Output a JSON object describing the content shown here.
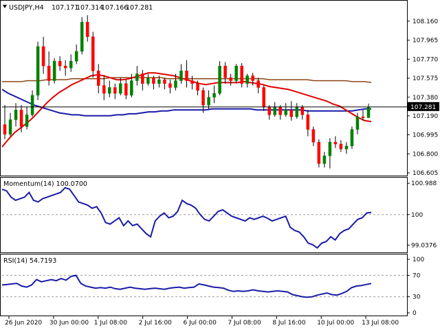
{
  "window": {
    "symbol_label": "USDJPY,H4",
    "ohlc": [
      "107.171",
      "107.314",
      "107.166",
      "107.281"
    ],
    "current_price_label": "107.281"
  },
  "chart_data": [
    {
      "type": "candlestick",
      "title": "USDJPY,H4",
      "ylim": [
        106.605,
        108.25
      ],
      "y_ticks": [
        "108.160",
        "107.965",
        "107.770",
        "107.575",
        "107.380",
        "107.190",
        "106.995",
        "106.800",
        "106.605"
      ],
      "x_ticks": [
        "26 Jun 2020",
        "30 Jun 00:00",
        "1 Jul 08:00",
        "2 Jul 16:00",
        "6 Jul 00:00",
        "7 Jul 08:00",
        "8 Jul 16:00",
        "10 Jul 00:00",
        "13 Jul 08:00"
      ],
      "current_price": 107.281,
      "colors": {
        "bull": "#008000",
        "bear": "#ff0000",
        "wick": "#000000",
        "ma_fast": "#e00000",
        "ma_mid": "#8b4513",
        "ma_slow": "#1a1aa8"
      },
      "candles": [
        [
          107.1,
          107.0,
          107.3,
          106.95
        ],
        [
          107.0,
          107.15,
          107.22,
          106.98
        ],
        [
          107.15,
          107.25,
          107.32,
          107.08
        ],
        [
          107.25,
          107.08,
          107.3,
          107.02
        ],
        [
          107.08,
          107.2,
          107.28,
          107.05
        ],
        [
          107.2,
          107.4,
          107.45,
          107.18
        ],
        [
          107.4,
          107.9,
          107.95,
          107.35
        ],
        [
          107.9,
          107.7,
          108.0,
          107.62
        ],
        [
          107.7,
          107.55,
          107.85,
          107.5
        ],
        [
          107.55,
          107.75,
          107.78,
          107.52
        ],
        [
          107.75,
          107.7,
          107.8,
          107.65
        ],
        [
          107.7,
          107.68,
          107.76,
          107.6
        ],
        [
          107.68,
          107.75,
          107.82,
          107.64
        ],
        [
          107.75,
          107.85,
          107.92,
          107.72
        ],
        [
          107.85,
          108.15,
          108.2,
          107.82
        ],
        [
          108.15,
          108.0,
          108.22,
          107.95
        ],
        [
          108.0,
          107.65,
          108.05,
          107.58
        ],
        [
          107.65,
          107.5,
          107.72,
          107.42
        ],
        [
          107.5,
          107.42,
          107.6,
          107.35
        ],
        [
          107.42,
          107.48,
          107.55,
          107.38
        ],
        [
          107.48,
          107.42,
          107.52,
          107.36
        ],
        [
          107.42,
          107.52,
          107.58,
          107.4
        ],
        [
          107.52,
          107.4,
          107.56,
          107.36
        ],
        [
          107.4,
          107.55,
          107.62,
          107.38
        ],
        [
          107.55,
          107.62,
          107.7,
          107.5
        ],
        [
          107.62,
          107.52,
          107.66,
          107.45
        ],
        [
          107.52,
          107.58,
          107.62,
          107.5
        ],
        [
          107.58,
          107.52,
          107.6,
          107.46
        ],
        [
          107.52,
          107.56,
          107.6,
          107.48
        ],
        [
          107.56,
          107.52,
          107.58,
          107.46
        ],
        [
          107.52,
          107.48,
          107.56,
          107.42
        ],
        [
          107.48,
          107.55,
          107.62,
          107.45
        ],
        [
          107.55,
          107.65,
          107.72,
          107.52
        ],
        [
          107.65,
          107.55,
          107.76,
          107.48
        ],
        [
          107.55,
          107.52,
          107.6,
          107.46
        ],
        [
          107.52,
          107.45,
          107.55,
          107.4
        ],
        [
          107.45,
          107.3,
          107.48,
          107.22
        ],
        [
          107.3,
          107.38,
          107.45,
          107.26
        ],
        [
          107.38,
          107.42,
          107.5,
          107.32
        ],
        [
          107.42,
          107.7,
          107.75,
          107.4
        ],
        [
          107.7,
          107.58,
          107.74,
          107.52
        ],
        [
          107.58,
          107.55,
          107.62,
          107.5
        ],
        [
          107.55,
          107.7,
          107.72,
          107.52
        ],
        [
          107.7,
          107.52,
          107.73,
          107.48
        ],
        [
          107.52,
          107.6,
          107.62,
          107.48
        ],
        [
          107.6,
          107.55,
          107.63,
          107.5
        ],
        [
          107.55,
          107.48,
          107.58,
          107.42
        ],
        [
          107.48,
          107.28,
          107.5,
          107.24
        ],
        [
          107.28,
          107.2,
          107.3,
          107.15
        ],
        [
          107.2,
          107.28,
          107.33,
          107.18
        ],
        [
          107.28,
          107.2,
          107.3,
          107.15
        ],
        [
          107.2,
          107.25,
          107.32,
          107.18
        ],
        [
          107.25,
          107.18,
          107.34,
          107.14
        ],
        [
          107.18,
          107.28,
          107.32,
          107.16
        ],
        [
          107.28,
          107.2,
          107.3,
          107.15
        ],
        [
          107.2,
          107.05,
          107.25,
          106.98
        ],
        [
          107.05,
          106.92,
          107.08,
          106.88
        ],
        [
          106.92,
          106.7,
          106.95,
          106.66
        ],
        [
          106.7,
          106.78,
          106.82,
          106.66
        ],
        [
          106.78,
          106.92,
          106.96,
          106.65
        ],
        [
          106.92,
          106.9,
          106.98,
          106.86
        ],
        [
          106.9,
          106.85,
          106.94,
          106.82
        ],
        [
          106.85,
          106.88,
          106.92,
          106.8
        ],
        [
          106.88,
          107.05,
          107.08,
          106.85
        ],
        [
          107.05,
          107.18,
          107.22,
          107.0
        ],
        [
          107.18,
          107.17,
          107.25,
          107.14
        ],
        [
          107.171,
          107.281,
          107.314,
          107.166
        ]
      ],
      "ma_fast": [
        106.87,
        106.95,
        107.02,
        107.07,
        107.12,
        107.18,
        107.25,
        107.32,
        107.38,
        107.43,
        107.47,
        107.51,
        107.54,
        107.57,
        107.6,
        107.61,
        107.6,
        107.58,
        107.56,
        107.56,
        107.57,
        107.59,
        107.61,
        107.63,
        107.63,
        107.62,
        107.61,
        107.6,
        107.58,
        107.56,
        107.54,
        107.52,
        107.51,
        107.52,
        107.53,
        107.53,
        107.53,
        107.53,
        107.54,
        107.53,
        107.52,
        107.51,
        107.49,
        107.48,
        107.47,
        107.46,
        107.44,
        107.42,
        107.4,
        107.38,
        107.36,
        107.34,
        107.31,
        107.29,
        107.25,
        107.21,
        107.17,
        107.14,
        107.13
      ],
      "ma_mid": [
        107.54,
        107.54,
        107.54,
        107.54,
        107.55,
        107.55,
        107.55,
        107.56,
        107.56,
        107.56,
        107.56,
        107.57,
        107.57,
        107.57,
        107.57,
        107.57,
        107.57,
        107.58,
        107.58,
        107.58,
        107.58,
        107.58,
        107.58,
        107.58,
        107.58,
        107.58,
        107.57,
        107.57,
        107.57,
        107.57,
        107.57,
        107.57,
        107.57,
        107.57,
        107.57,
        107.57,
        107.57,
        107.57,
        107.57,
        107.57,
        107.57,
        107.57,
        107.56,
        107.56,
        107.56,
        107.56,
        107.56,
        107.56,
        107.56,
        107.55,
        107.55,
        107.55,
        107.55,
        107.55,
        107.55,
        107.54,
        107.54,
        107.54,
        107.53
      ],
      "ma_slow": [
        107.46,
        107.42,
        107.39,
        107.36,
        107.33,
        107.3,
        107.28,
        107.26,
        107.24,
        107.22,
        107.21,
        107.2,
        107.2,
        107.19,
        107.19,
        107.19,
        107.19,
        107.19,
        107.2,
        107.2,
        107.21,
        107.21,
        107.22,
        107.23,
        107.23,
        107.24,
        107.24,
        107.25,
        107.25,
        107.25,
        107.25,
        107.25,
        107.25,
        107.26,
        107.26,
        107.26,
        107.26,
        107.26,
        107.26,
        107.26,
        107.25,
        107.25,
        107.25,
        107.25,
        107.25,
        107.25,
        107.25,
        107.25,
        107.24,
        107.24,
        107.24,
        107.24,
        107.24,
        107.24,
        107.24,
        107.24,
        107.25,
        107.26,
        107.26
      ]
    },
    {
      "type": "line",
      "title": "Momentum(14) 100.0700",
      "ylim": [
        98.85,
        101.1
      ],
      "y_ticks": [
        "100.988",
        "100",
        "99.0376"
      ],
      "reference_line": 100,
      "series": [
        {
          "values": [
            100.8,
            100.75,
            100.55,
            100.45,
            100.5,
            100.55,
            100.7,
            100.45,
            100.4,
            100.5,
            100.55,
            100.6,
            100.65,
            100.7,
            100.85,
            100.8,
            100.6,
            100.4,
            100.35,
            100.3,
            100.2,
            100.25,
            100.05,
            99.75,
            99.7,
            99.8,
            99.9,
            99.65,
            99.8,
            99.65,
            99.7,
            99.55,
            99.4,
            99.3,
            99.8,
            99.95,
            100.05,
            99.9,
            99.95,
            100.1,
            100.45,
            100.35,
            100.3,
            100.2,
            100.0,
            99.85,
            99.8,
            99.95,
            100.1,
            100.15,
            100.05,
            99.95,
            99.9,
            99.85,
            99.8,
            99.9,
            99.85,
            99.9,
            99.95,
            99.88,
            99.8,
            99.85,
            99.9,
            99.95,
            99.6,
            99.5,
            99.45,
            99.3,
            99.1,
            99.05,
            98.95,
            99.1,
            99.15,
            99.3,
            99.2,
            99.4,
            99.5,
            99.55,
            99.7,
            99.85,
            99.9,
            100.05,
            100.07
          ]
        }
      ]
    },
    {
      "type": "line",
      "title": "RSI(14) 54.7193",
      "ylim": [
        0,
        100
      ],
      "y_ticks": [
        "100",
        "70",
        "30",
        "0"
      ],
      "reference_lines": [
        70,
        30
      ],
      "series": [
        {
          "values": [
            52,
            53,
            54,
            55,
            50,
            48,
            52,
            62,
            58,
            60,
            62,
            60,
            64,
            61,
            68,
            70,
            55,
            50,
            48,
            46,
            47,
            46,
            48,
            45,
            44,
            46,
            48,
            46,
            45,
            44,
            45,
            46,
            45,
            44,
            46,
            47,
            48,
            46,
            47,
            48,
            54,
            52,
            50,
            48,
            47,
            46,
            42,
            40,
            41,
            40,
            41,
            43,
            41,
            40,
            39,
            40,
            41,
            40,
            39,
            34,
            32,
            30,
            29,
            30,
            33,
            35,
            37,
            34,
            33,
            36,
            40,
            47,
            50,
            51,
            53,
            54.7
          ]
        }
      ]
    }
  ],
  "x_axis": [
    "26 Jun 2020",
    "30 Jun 00:00",
    "1 Jul 08:00",
    "2 Jul 16:00",
    "6 Jul 00:00",
    "7 Jul 08:00",
    "8 Jul 16:00",
    "10 Jul 00:00",
    "13 Jul 08:00"
  ]
}
